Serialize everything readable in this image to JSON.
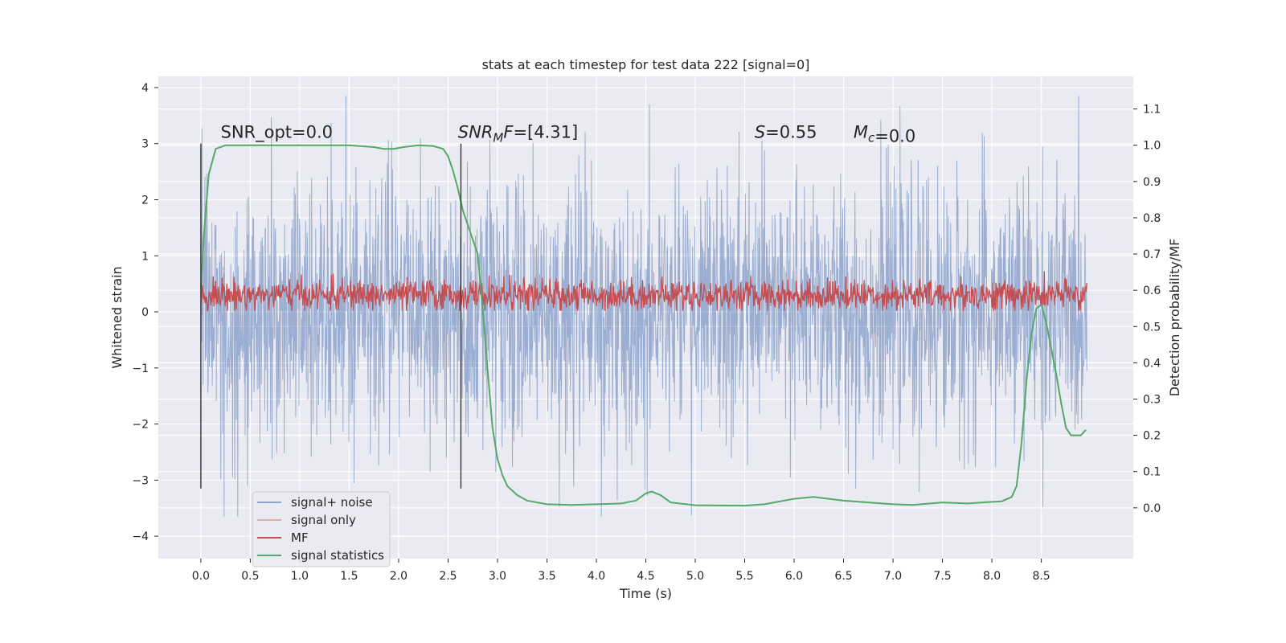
{
  "chart_data": {
    "type": "line",
    "title": "stats at each timestep for test data 222 [signal=0]",
    "xlabel": "Time (s)",
    "ylabel": "Whitened strain",
    "y2label": "Detection probability/MF",
    "xlim": [
      -0.43,
      9.43
    ],
    "ylim": [
      -4.4,
      4.2
    ],
    "y2lim": [
      -0.14,
      1.19
    ],
    "xticks": [
      0.0,
      0.5,
      1.0,
      1.5,
      2.0,
      2.5,
      3.0,
      3.5,
      4.0,
      4.5,
      5.0,
      5.5,
      6.0,
      6.5,
      7.0,
      7.5,
      8.0,
      8.5
    ],
    "xtick_labels": [
      "0.0",
      "0.5",
      "1.0",
      "1.5",
      "2.0",
      "2.5",
      "3.0",
      "3.5",
      "4.0",
      "4.5",
      "5.0",
      "5.5",
      "6.0",
      "6.5",
      "7.0",
      "7.5",
      "8.0",
      "8.5"
    ],
    "yticks": [
      4,
      3,
      2,
      1,
      0,
      -1,
      -2,
      -3,
      -4
    ],
    "ytick_labels": [
      "4",
      "3",
      "2",
      "1",
      "0",
      "−1",
      "−2",
      "−3",
      "−4"
    ],
    "y2ticks": [
      1.1,
      1.0,
      0.9,
      0.8,
      0.7,
      0.6,
      0.5,
      0.4,
      0.3,
      0.2,
      0.1,
      0.0
    ],
    "y2tick_labels": [
      "1.1",
      "1.0",
      "0.9",
      "0.8",
      "0.7",
      "0.6",
      "0.5",
      "0.4",
      "0.3",
      "0.2",
      "0.1",
      "0.0"
    ],
    "grid": true,
    "legend_position": "lower-left",
    "series": [
      {
        "name": "signal+ noise",
        "color": "#4c72b0",
        "kind": "noise",
        "t_range": [
          0.0,
          8.96
        ],
        "y_range": [
          -3.65,
          3.85
        ]
      },
      {
        "name": "signal only",
        "color": "#dd8452",
        "kind": "flat",
        "values": [
          0.0
        ]
      },
      {
        "name": "MF",
        "color": "#c44e52",
        "kind": "band",
        "t_range": [
          0.0,
          8.96
        ],
        "y_range": [
          0.02,
          0.97
        ]
      },
      {
        "name": "signal statistics",
        "color": "#55a868",
        "axis": "right",
        "x": [
          0.0,
          0.03,
          0.08,
          0.15,
          0.25,
          0.5,
          1.0,
          1.5,
          1.75,
          1.85,
          1.95,
          2.05,
          2.2,
          2.35,
          2.45,
          2.5,
          2.55,
          2.6,
          2.65,
          2.7,
          2.75,
          2.8,
          2.85,
          2.9,
          2.95,
          3.0,
          3.05,
          3.1,
          3.2,
          3.3,
          3.5,
          3.75,
          4.0,
          4.25,
          4.4,
          4.5,
          4.56,
          4.65,
          4.75,
          5.0,
          5.5,
          5.7,
          6.0,
          6.2,
          6.5,
          7.0,
          7.2,
          7.5,
          7.75,
          7.9,
          8.1,
          8.2,
          8.25,
          8.3,
          8.35,
          8.4,
          8.45,
          8.5,
          8.55,
          8.6,
          8.65,
          8.7,
          8.75,
          8.8,
          8.85,
          8.9,
          8.95
        ],
        "values": [
          0.6,
          0.75,
          0.92,
          0.99,
          1.0,
          1.0,
          1.0,
          1.0,
          0.995,
          0.99,
          0.99,
          0.995,
          1.0,
          0.998,
          0.99,
          0.97,
          0.93,
          0.88,
          0.82,
          0.78,
          0.74,
          0.7,
          0.55,
          0.38,
          0.22,
          0.135,
          0.09,
          0.06,
          0.035,
          0.02,
          0.01,
          0.008,
          0.01,
          0.012,
          0.02,
          0.04,
          0.045,
          0.035,
          0.015,
          0.007,
          0.006,
          0.01,
          0.025,
          0.03,
          0.02,
          0.01,
          0.008,
          0.015,
          0.012,
          0.015,
          0.018,
          0.03,
          0.06,
          0.18,
          0.35,
          0.48,
          0.55,
          0.56,
          0.51,
          0.44,
          0.37,
          0.29,
          0.22,
          0.2,
          0.2,
          0.2,
          0.215
        ]
      }
    ],
    "vlines": [
      {
        "x": 0.0,
        "y_range": [
          -3.15,
          3.0
        ]
      },
      {
        "x": 2.63,
        "y_range": [
          -3.15,
          3.0
        ]
      }
    ],
    "annotations": [
      {
        "x": 0.2,
        "y": 3.1,
        "text": "SNR_opt=0.0",
        "italic": false
      },
      {
        "x": 2.6,
        "y": 3.1,
        "prefix": "SNR",
        "sub": "M",
        "suffix": "F=[4.31]",
        "italic": true
      },
      {
        "x": 5.6,
        "y": 3.1,
        "prefix": "S",
        "sub": "",
        "suffix": "=0.55",
        "italic": true
      },
      {
        "x": 6.6,
        "y": 3.1,
        "prefix": "M",
        "sub": "c",
        "suffix": "=0.0",
        "italic": true
      }
    ],
    "legend": [
      "signal+ noise",
      "signal only",
      "MF",
      "signal statistics"
    ]
  }
}
